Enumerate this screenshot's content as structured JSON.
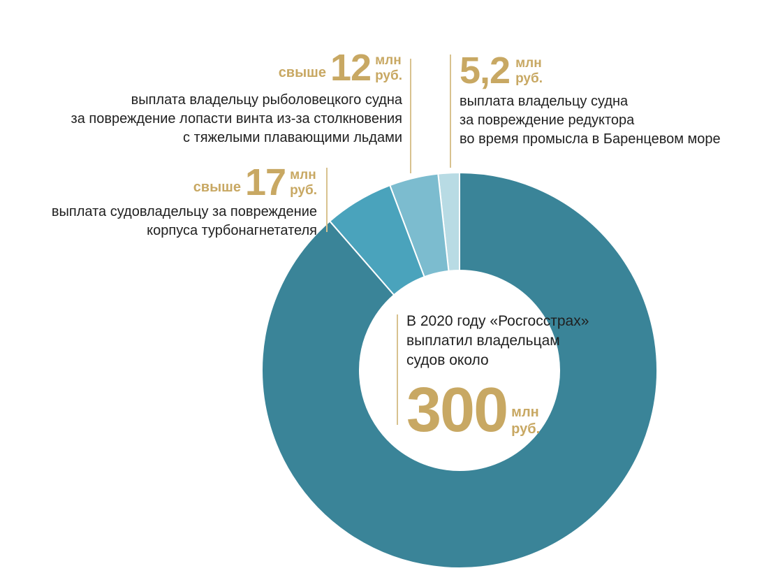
{
  "chart_data": {
    "type": "pie",
    "variant": "donut",
    "slices": [
      {
        "label": "выплата владельцу судна за повреждение редуктора во время промысла в Баренцевом море",
        "value": 5.2,
        "color": "#b8dbe4"
      },
      {
        "label": "выплата владельцу рыболовецкого судна за повреждение лопасти винта из-за столкновения с тяжелыми плавающими льдами",
        "value": 12,
        "color": "#7cbccf"
      },
      {
        "label": "выплата судовладельцу за повреждение корпуса турбонагнетателя",
        "value": 17,
        "color": "#4aa3bc"
      },
      {
        "label": "",
        "value": 265.8,
        "color": "#3a8498"
      }
    ],
    "total": 300,
    "center": {
      "text_lines": [
        "В 2020 году «Росгосстрах»",
        "выплатил владельцам",
        "судов около"
      ],
      "value": "300",
      "unit_line1": "млн",
      "unit_line2": "руб."
    }
  },
  "callouts": {
    "c52": {
      "prefix": "",
      "value": "5,2",
      "unit1": "млн",
      "unit2": "руб.",
      "lines": [
        "выплата владельцу судна",
        "за повреждение редуктора",
        "во время промысла в Баренцевом море"
      ]
    },
    "c12": {
      "prefix": "свыше",
      "value": "12",
      "unit1": "млн",
      "unit2": "руб.",
      "lines": [
        "выплата владельцу рыболовецкого судна",
        "за повреждение лопасти винта из-за столкновения",
        "с тяжелыми плавающими льдами"
      ]
    },
    "c17": {
      "prefix": "свыше",
      "value": "17",
      "unit1": "млн",
      "unit2": "руб.",
      "lines": [
        "выплата судовладельцу за повреждение",
        "корпуса турбонагнетателя"
      ]
    }
  },
  "colors": {
    "gold": "#c8a863",
    "divider": "#d8c28f"
  }
}
